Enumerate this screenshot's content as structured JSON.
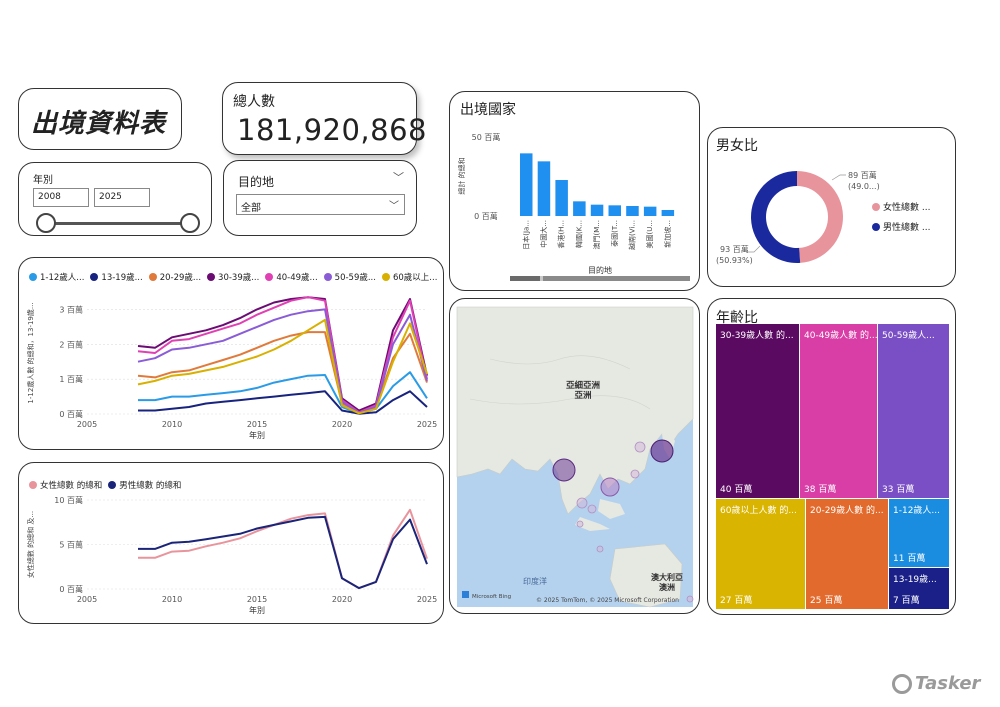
{
  "report_title": "出境資料表",
  "total": {
    "label": "總人數",
    "value": "181,920,868"
  },
  "year_filter": {
    "label": "年別",
    "from": "2008",
    "to": "2025"
  },
  "dest_filter": {
    "label": "目的地",
    "selected": "全部"
  },
  "country_chart": {
    "title": "出境國家",
    "ylabel": "總計 的總和",
    "xlabel": "目的地",
    "y_ticks": [
      "50 百萬",
      "0 百萬"
    ],
    "chart_data": {
      "type": "bar",
      "categories": [
        "日本(Ja...",
        "中國大...",
        "香港(H...",
        "韓國(K...",
        "澳門(M...",
        "泰國(T...",
        "越南(Vi...",
        "美國(U...",
        "新加坡..."
      ],
      "values": [
        47,
        41,
        27,
        11,
        8.5,
        8,
        7.5,
        7,
        4.5
      ],
      "ylim": [
        0,
        60
      ],
      "color": "#1f8ff0"
    }
  },
  "gender_chart": {
    "title": "男女比",
    "female_label": "89 百萬",
    "female_pct": "(49.0...)",
    "male_label": "93 百萬",
    "male_pct": "(50.93%)",
    "legend_female": "女性總數 ...",
    "legend_male": "男性總數 ...",
    "chart_data": {
      "type": "pie",
      "categories": [
        "女性總數",
        "男性總數"
      ],
      "values": [
        89,
        93
      ],
      "colors": [
        "#e8949c",
        "#1a2a9e"
      ]
    }
  },
  "age_line_chart": {
    "ylabel": "1-12歲人數 的總和，13-19歲...",
    "xlabel": "年別",
    "y_ticks": [
      "0 百萬",
      "1 百萬",
      "2 百萬",
      "3 百萬"
    ],
    "x_ticks": [
      "2005",
      "2010",
      "2015",
      "2020",
      "2025"
    ],
    "chart_data": {
      "type": "line",
      "x": [
        2008,
        2009,
        2010,
        2011,
        2012,
        2013,
        2014,
        2015,
        2016,
        2017,
        2018,
        2019,
        2020,
        2021,
        2022,
        2023,
        2024,
        2025
      ],
      "xlim": [
        2005,
        2025
      ],
      "ylim": [
        0,
        3.5
      ],
      "series": [
        {
          "name": "1-12歲人...",
          "color": "#2a9be6",
          "values": [
            0.4,
            0.4,
            0.5,
            0.5,
            0.55,
            0.6,
            0.65,
            0.75,
            0.9,
            1.0,
            1.1,
            1.12,
            0.2,
            0.02,
            0.15,
            0.8,
            1.2,
            0.45
          ]
        },
        {
          "name": "13-19歲...",
          "color": "#17237f",
          "values": [
            0.1,
            0.1,
            0.15,
            0.2,
            0.3,
            0.35,
            0.4,
            0.45,
            0.5,
            0.55,
            0.6,
            0.65,
            0.1,
            0.01,
            0.05,
            0.4,
            0.65,
            0.2
          ]
        },
        {
          "name": "20-29歲...",
          "color": "#e07a3a",
          "values": [
            1.1,
            1.05,
            1.2,
            1.25,
            1.4,
            1.55,
            1.7,
            1.9,
            2.1,
            2.25,
            2.35,
            2.35,
            0.3,
            0.05,
            0.2,
            1.6,
            2.3,
            0.9
          ]
        },
        {
          "name": "30-39歲...",
          "color": "#6b0c73",
          "values": [
            1.95,
            1.9,
            2.2,
            2.3,
            2.4,
            2.55,
            2.75,
            3.0,
            3.2,
            3.3,
            3.35,
            3.3,
            0.45,
            0.1,
            0.3,
            2.4,
            3.3,
            1.1
          ]
        },
        {
          "name": "40-49歲...",
          "color": "#e040b4",
          "values": [
            1.8,
            1.75,
            2.1,
            2.15,
            2.3,
            2.45,
            2.6,
            2.85,
            3.05,
            3.25,
            3.35,
            3.25,
            0.4,
            0.05,
            0.25,
            2.2,
            3.25,
            1.0
          ]
        },
        {
          "name": "50-59歲...",
          "color": "#8a5cd6",
          "values": [
            1.5,
            1.6,
            1.85,
            1.9,
            2.0,
            2.1,
            2.3,
            2.5,
            2.7,
            2.85,
            2.95,
            3.0,
            0.35,
            0.03,
            0.2,
            2.0,
            2.85,
            0.95
          ]
        },
        {
          "name": "60歲以上...",
          "color": "#d8b000",
          "values": [
            0.85,
            0.95,
            1.1,
            1.15,
            1.25,
            1.35,
            1.5,
            1.65,
            1.85,
            2.1,
            2.4,
            2.7,
            0.25,
            0.02,
            0.15,
            1.5,
            2.6,
            1.15
          ]
        }
      ]
    }
  },
  "gender_line_chart": {
    "ylabel": "女性總數 的總和 及...",
    "xlabel": "年別",
    "y_ticks": [
      "0 百萬",
      "5 百萬",
      "10 百萬"
    ],
    "x_ticks": [
      "2005",
      "2010",
      "2015",
      "2020",
      "2025"
    ],
    "chart_data": {
      "type": "line",
      "x": [
        2008,
        2009,
        2010,
        2011,
        2012,
        2013,
        2014,
        2015,
        2016,
        2017,
        2018,
        2019,
        2020,
        2021,
        2022,
        2023,
        2024,
        2025
      ],
      "xlim": [
        2005,
        2025
      ],
      "ylim": [
        0,
        10
      ],
      "series": [
        {
          "name": "女性總數 的總和",
          "color": "#e8949c",
          "values": [
            3.5,
            3.5,
            4.2,
            4.3,
            4.8,
            5.2,
            5.7,
            6.5,
            7.2,
            7.9,
            8.3,
            8.5,
            1.2,
            0.1,
            0.8,
            6.0,
            8.9,
            3.4
          ]
        },
        {
          "name": "男性總數 的總和",
          "color": "#1a2478",
          "values": [
            4.5,
            4.5,
            5.2,
            5.3,
            5.6,
            5.9,
            6.2,
            6.8,
            7.2,
            7.6,
            8.0,
            8.1,
            1.2,
            0.1,
            0.8,
            5.6,
            7.8,
            2.8
          ]
        }
      ]
    }
  },
  "map": {
    "label_asia_1": "亞細亞洲",
    "label_asia_2": "亞洲",
    "label_ocean": "印度洋",
    "label_aus_1": "澳大利亞",
    "label_aus_2": "澳洲",
    "bing_logo": "Microsoft Bing",
    "copyright": "© 2025 TomTom, © 2025 Microsoft Corporation"
  },
  "age_treemap": {
    "title": "年齡比",
    "chart_data": {
      "type": "treemap",
      "categories": [
        "30-39歲人數 的...",
        "40-49歲人數 的...",
        "50-59歲人...",
        "60歲以上人數 的...",
        "20-29歲人數 的...",
        "1-12歲人...",
        "13-19歲..."
      ],
      "value_labels": [
        "40 百萬",
        "38 百萬",
        "33 百萬",
        "27 百萬",
        "25 百萬",
        "11 百萬",
        "7 百萬"
      ],
      "values": [
        40,
        38,
        33,
        27,
        25,
        11,
        7
      ],
      "colors": [
        "#5b0a62",
        "#d93da6",
        "#7a4fc6",
        "#d9b400",
        "#e26a2c",
        "#1a8de0",
        "#1a2088"
      ]
    }
  },
  "watermark": "Tasker"
}
